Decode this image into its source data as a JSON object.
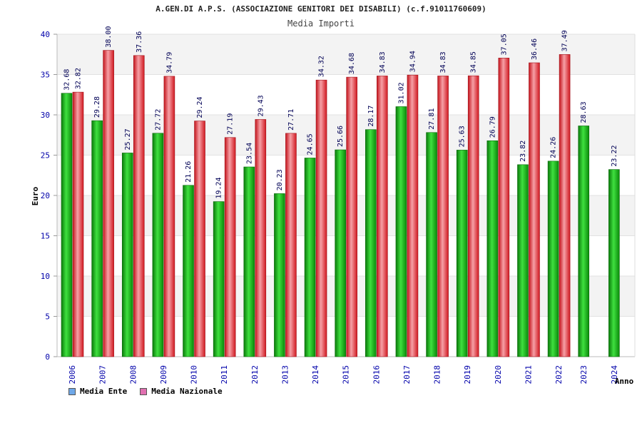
{
  "chart_data": {
    "type": "bar",
    "title": "A.GEN.DI A.P.S. (ASSOCIAZIONE GENITORI DEI DISABILI) (c.f.91011760609)",
    "subtitle": "Media Importi",
    "xlabel": "Anno",
    "ylabel": "Euro",
    "ylim": [
      0,
      40
    ],
    "yticks": [
      "0",
      "5",
      "10",
      "15",
      "20",
      "25",
      "30",
      "35",
      "40"
    ],
    "categories": [
      "2006",
      "2007",
      "2008",
      "2009",
      "2010",
      "2011",
      "2012",
      "2013",
      "2014",
      "2015",
      "2016",
      "2017",
      "2018",
      "2019",
      "2020",
      "2021",
      "2022",
      "2023",
      "2024"
    ],
    "series": [
      {
        "name": "Media Ente",
        "color": "#1fbf1f",
        "values": [
          32.68,
          29.28,
          25.27,
          27.72,
          21.26,
          19.24,
          23.54,
          20.23,
          24.65,
          25.66,
          28.17,
          31.02,
          27.81,
          25.63,
          26.79,
          23.82,
          24.26,
          28.63,
          23.22
        ],
        "labels": [
          "32.68",
          "29.28",
          "25.27",
          "27.72",
          "21.26",
          "19.24",
          "23.54",
          "20.23",
          "24.65",
          "25.66",
          "28.17",
          "31.02",
          "27.81",
          "25.63",
          "26.79",
          "23.82",
          "24.26",
          "28.63",
          "23.22"
        ]
      },
      {
        "name": "Media Nazionale",
        "color": "#e8222b",
        "values": [
          32.82,
          38.0,
          37.36,
          34.79,
          29.24,
          27.19,
          29.43,
          27.71,
          34.32,
          34.68,
          34.83,
          34.94,
          34.83,
          34.85,
          37.05,
          36.46,
          37.49,
          null,
          null
        ],
        "labels": [
          "32.82",
          "38.00",
          "37.36",
          "34.79",
          "29.24",
          "27.19",
          "29.43",
          "27.71",
          "34.32",
          "34.68",
          "34.83",
          "34.94",
          "34.83",
          "34.85",
          "37.05",
          "36.46",
          "37.49",
          null,
          null
        ]
      }
    ],
    "legend": [
      {
        "label": "Media Ente",
        "color": "#6fa8e8"
      },
      {
        "label": "Media Nazionale",
        "color": "#e070b0"
      }
    ],
    "grid": true,
    "legend_position": "bottom-left"
  }
}
